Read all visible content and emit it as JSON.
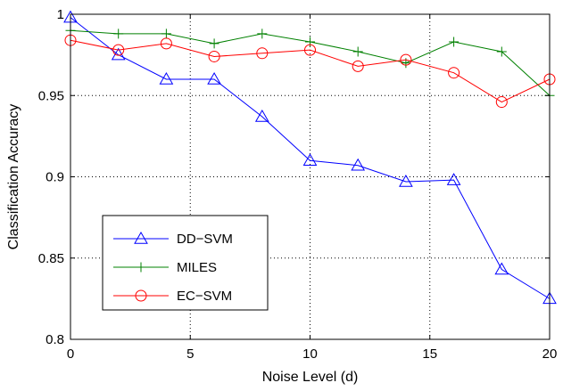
{
  "chart_data": {
    "type": "line",
    "title": "",
    "xlabel": "Noise Level (d)",
    "ylabel": "Classification Accuracy",
    "xlim": [
      0,
      20
    ],
    "ylim": [
      0.8,
      1.0
    ],
    "xticks": [
      0,
      5,
      10,
      15,
      20
    ],
    "yticks": [
      0.8,
      0.85,
      0.9,
      0.95,
      1.0
    ],
    "xtick_labels": [
      "0",
      "5",
      "10",
      "15",
      "20"
    ],
    "ytick_labels": [
      "0.8",
      "0.85",
      "0.9",
      "0.95",
      "1"
    ],
    "grid": true,
    "legend_position": "lower-left",
    "series": [
      {
        "name": "DD−SVM",
        "color": "#0000ff",
        "marker": "triangle",
        "x": [
          0,
          2,
          4,
          6,
          8,
          10,
          12,
          14,
          16,
          18,
          20
        ],
        "y": [
          0.998,
          0.975,
          0.96,
          0.96,
          0.937,
          0.91,
          0.907,
          0.897,
          0.898,
          0.843,
          0.825
        ]
      },
      {
        "name": "MILES",
        "color": "#008000",
        "marker": "plus",
        "x": [
          0,
          2,
          4,
          6,
          8,
          10,
          12,
          14,
          16,
          18,
          20
        ],
        "y": [
          0.99,
          0.988,
          0.988,
          0.982,
          0.988,
          0.983,
          0.977,
          0.97,
          0.983,
          0.977,
          0.95
        ]
      },
      {
        "name": "EC−SVM",
        "color": "#ff0000",
        "marker": "circle",
        "x": [
          0,
          2,
          4,
          6,
          8,
          10,
          12,
          14,
          16,
          18,
          20
        ],
        "y": [
          0.984,
          0.978,
          0.982,
          0.974,
          0.976,
          0.978,
          0.968,
          0.972,
          0.964,
          0.946,
          0.96
        ]
      }
    ]
  }
}
